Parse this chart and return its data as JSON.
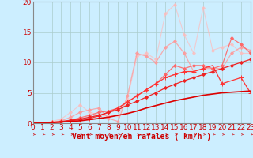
{
  "background_color": "#cceeff",
  "grid_color": "#aacccc",
  "title": "",
  "xlabel": "Vent moyen/en rafales ( km/h )",
  "ylabel": "",
  "xlim": [
    0,
    23
  ],
  "ylim": [
    0,
    20
  ],
  "xticks": [
    0,
    1,
    2,
    3,
    4,
    5,
    6,
    7,
    8,
    9,
    10,
    11,
    12,
    13,
    14,
    15,
    16,
    17,
    18,
    19,
    20,
    21,
    22,
    23
  ],
  "yticks": [
    0,
    5,
    10,
    15,
    20
  ],
  "series": [
    {
      "comment": "straight line - darkest red, no marker, goes from 0 to ~5 at x=23",
      "x": [
        0,
        1,
        2,
        3,
        4,
        5,
        6,
        7,
        8,
        9,
        10,
        11,
        12,
        13,
        14,
        15,
        16,
        17,
        18,
        19,
        20,
        21,
        22,
        23
      ],
      "y": [
        0,
        0.05,
        0.1,
        0.2,
        0.3,
        0.4,
        0.6,
        0.8,
        1.0,
        1.3,
        1.6,
        2.0,
        2.5,
        2.9,
        3.3,
        3.7,
        4.0,
        4.3,
        4.6,
        4.8,
        5.0,
        5.1,
        5.2,
        5.3
      ],
      "color": "#dd0000",
      "linewidth": 1.2,
      "marker": null,
      "alpha": 1.0
    },
    {
      "comment": "slightly lighter, straight-ish with small markers, 0 to ~10",
      "x": [
        0,
        1,
        2,
        3,
        4,
        5,
        6,
        7,
        8,
        9,
        10,
        11,
        12,
        13,
        14,
        15,
        16,
        17,
        18,
        19,
        20,
        21,
        22,
        23
      ],
      "y": [
        0,
        0.05,
        0.15,
        0.3,
        0.5,
        0.7,
        1.0,
        1.3,
        1.8,
        2.2,
        3.0,
        3.6,
        4.3,
        5.0,
        5.8,
        6.4,
        7.0,
        7.5,
        8.0,
        8.5,
        9.0,
        9.5,
        10.0,
        10.5
      ],
      "color": "#ee2222",
      "linewidth": 0.9,
      "marker": "D",
      "markersize": 2,
      "alpha": 1.0
    },
    {
      "comment": "medium red, with + markers, rises then dips at end ~5",
      "x": [
        0,
        1,
        2,
        3,
        4,
        5,
        6,
        7,
        8,
        9,
        10,
        11,
        12,
        13,
        14,
        15,
        16,
        17,
        18,
        19,
        20,
        21,
        22,
        23
      ],
      "y": [
        0,
        0.05,
        0.1,
        0.2,
        0.4,
        0.6,
        0.8,
        1.2,
        1.8,
        2.5,
        3.5,
        4.5,
        5.5,
        6.5,
        7.5,
        8.0,
        8.5,
        8.5,
        9.0,
        9.5,
        6.5,
        7.0,
        7.5,
        5.0
      ],
      "color": "#ff3333",
      "linewidth": 0.9,
      "marker": "+",
      "markersize": 4,
      "alpha": 1.0
    },
    {
      "comment": "medium-light red, rises to ~14 then drops",
      "x": [
        0,
        1,
        2,
        3,
        4,
        5,
        6,
        7,
        8,
        9,
        10,
        11,
        12,
        13,
        14,
        15,
        16,
        17,
        18,
        19,
        20,
        21,
        22,
        23
      ],
      "y": [
        0,
        0,
        0.1,
        0.2,
        0.5,
        0.9,
        1.3,
        1.8,
        2.0,
        2.5,
        3.5,
        4.5,
        5.5,
        6.5,
        8.0,
        9.5,
        9.0,
        9.5,
        9.5,
        9.0,
        9.5,
        14.0,
        13.0,
        11.5
      ],
      "color": "#ff6666",
      "linewidth": 0.9,
      "marker": "D",
      "markersize": 2,
      "alpha": 0.9
    },
    {
      "comment": "light pink-red, spiky, 0 low then spike at 11, goes up to ~13",
      "x": [
        0,
        1,
        2,
        3,
        4,
        5,
        6,
        7,
        8,
        9,
        10,
        11,
        12,
        13,
        14,
        15,
        16,
        17,
        18,
        19,
        20,
        21,
        22,
        23
      ],
      "y": [
        0,
        0,
        0.2,
        0.4,
        1.0,
        1.8,
        2.2,
        2.5,
        0.8,
        0.3,
        4.5,
        11.5,
        11.0,
        10.0,
        12.5,
        13.5,
        11.5,
        8.5,
        9.0,
        9.0,
        9.0,
        11.5,
        12.5,
        12.0
      ],
      "color": "#ff9999",
      "linewidth": 0.9,
      "marker": "D",
      "markersize": 2,
      "alpha": 0.8
    },
    {
      "comment": "very light pink, very spiky, goes up to 18-19",
      "x": [
        0,
        1,
        2,
        3,
        4,
        5,
        6,
        7,
        8,
        9,
        10,
        11,
        12,
        13,
        14,
        15,
        16,
        17,
        18,
        19,
        20,
        21,
        22,
        23
      ],
      "y": [
        0,
        0,
        0.3,
        0.7,
        1.8,
        3.0,
        1.8,
        1.3,
        1.2,
        1.3,
        4.0,
        11.0,
        11.5,
        10.5,
        18.0,
        19.5,
        14.5,
        11.5,
        19.0,
        12.0,
        12.5,
        13.0,
        11.5,
        11.5
      ],
      "color": "#ffbbbb",
      "linewidth": 0.8,
      "marker": "D",
      "markersize": 2,
      "alpha": 0.7
    }
  ],
  "arrow_color": "#cc0000",
  "tick_color": "#cc0000",
  "axis_color": "#888888",
  "xlabel_color": "#cc0000",
  "xlabel_fontsize": 7,
  "tick_fontsize": 6.5
}
